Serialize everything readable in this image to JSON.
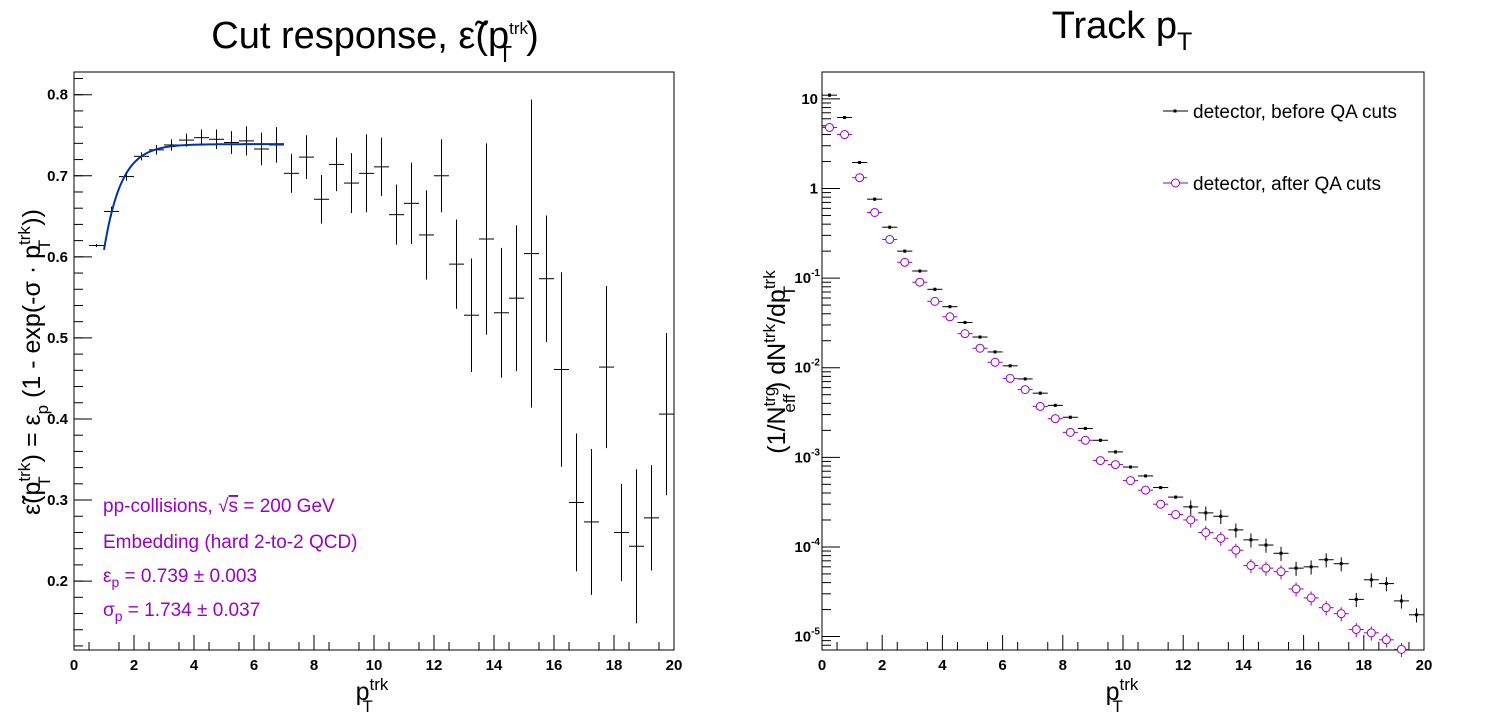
{
  "chart_data": [
    {
      "type": "scatter",
      "title": "Cut response, ",
      "title_var": "ε̃(p",
      "title_sup": "trk",
      "title_sub": "T",
      "title_close": ")",
      "xlabel": "p",
      "xlabel_sup": "trk",
      "xlabel_sub": "T",
      "ylabel": "ε̃(pᵀᵗʳᵏ) = εₚ (1 - exp(-σ · pᵀᵗʳᵏ))",
      "ylabel_parts": [
        "ε̃(p",
        "trk",
        "T",
        ") = ε",
        "p",
        " (1 - exp(-σ · p",
        "trk",
        "T",
        "))"
      ],
      "xlim": [
        0,
        20
      ],
      "ylim": [
        0.115,
        0.828
      ],
      "xticks": [
        "0",
        "2",
        "4",
        "6",
        "8",
        "10",
        "12",
        "14",
        "16",
        "18",
        "20"
      ],
      "yticks": [
        "0.2",
        "0.3",
        "0.4",
        "0.5",
        "0.6",
        "0.7",
        "0.8"
      ],
      "ytick_values": [
        0.2,
        0.3,
        0.4,
        0.5,
        0.6,
        0.7,
        0.8
      ],
      "grid": false,
      "series": [
        {
          "color": "#000000",
          "points": [
            {
              "x": 0.75,
              "xerr": 0.25,
              "y": 0.614,
              "yerr": 0.002
            },
            {
              "x": 1.25,
              "xerr": 0.25,
              "y": 0.656,
              "yerr": 0.006
            },
            {
              "x": 1.75,
              "xerr": 0.25,
              "y": 0.699,
              "yerr": 0.005
            },
            {
              "x": 2.25,
              "xerr": 0.25,
              "y": 0.724,
              "yerr": 0.005
            },
            {
              "x": 2.75,
              "xerr": 0.25,
              "y": 0.732,
              "yerr": 0.006
            },
            {
              "x": 3.25,
              "xerr": 0.25,
              "y": 0.738,
              "yerr": 0.007
            },
            {
              "x": 3.75,
              "xerr": 0.25,
              "y": 0.744,
              "yerr": 0.008
            },
            {
              "x": 4.25,
              "xerr": 0.25,
              "y": 0.747,
              "yerr": 0.01
            },
            {
              "x": 4.75,
              "xerr": 0.25,
              "y": 0.745,
              "yerr": 0.012
            },
            {
              "x": 5.25,
              "xerr": 0.25,
              "y": 0.741,
              "yerr": 0.014
            },
            {
              "x": 5.75,
              "xerr": 0.25,
              "y": 0.743,
              "yerr": 0.018
            },
            {
              "x": 6.25,
              "xerr": 0.25,
              "y": 0.733,
              "yerr": 0.02
            },
            {
              "x": 6.75,
              "xerr": 0.25,
              "y": 0.738,
              "yerr": 0.022
            },
            {
              "x": 7.25,
              "xerr": 0.25,
              "y": 0.703,
              "yerr": 0.024
            },
            {
              "x": 7.75,
              "xerr": 0.25,
              "y": 0.723,
              "yerr": 0.027
            },
            {
              "x": 8.25,
              "xerr": 0.25,
              "y": 0.671,
              "yerr": 0.03
            },
            {
              "x": 8.75,
              "xerr": 0.25,
              "y": 0.714,
              "yerr": 0.033
            },
            {
              "x": 9.25,
              "xerr": 0.25,
              "y": 0.691,
              "yerr": 0.037
            },
            {
              "x": 9.75,
              "xerr": 0.25,
              "y": 0.703,
              "yerr": 0.048
            },
            {
              "x": 10.25,
              "xerr": 0.25,
              "y": 0.711,
              "yerr": 0.036
            },
            {
              "x": 10.75,
              "xerr": 0.25,
              "y": 0.652,
              "yerr": 0.037
            },
            {
              "x": 11.25,
              "xerr": 0.25,
              "y": 0.666,
              "yerr": 0.05
            },
            {
              "x": 11.75,
              "xerr": 0.25,
              "y": 0.627,
              "yerr": 0.055
            },
            {
              "x": 12.25,
              "xerr": 0.25,
              "y": 0.7,
              "yerr": 0.045
            },
            {
              "x": 12.75,
              "xerr": 0.25,
              "y": 0.591,
              "yerr": 0.055
            },
            {
              "x": 13.25,
              "xerr": 0.25,
              "y": 0.528,
              "yerr": 0.07
            },
            {
              "x": 13.75,
              "xerr": 0.25,
              "y": 0.622,
              "yerr": 0.118
            },
            {
              "x": 14.25,
              "xerr": 0.25,
              "y": 0.531,
              "yerr": 0.08
            },
            {
              "x": 14.75,
              "xerr": 0.25,
              "y": 0.549,
              "yerr": 0.09
            },
            {
              "x": 15.25,
              "xerr": 0.25,
              "y": 0.604,
              "yerr": 0.19
            },
            {
              "x": 15.75,
              "xerr": 0.25,
              "y": 0.573,
              "yerr": 0.078
            },
            {
              "x": 16.25,
              "xerr": 0.25,
              "y": 0.461,
              "yerr": 0.12
            },
            {
              "x": 16.75,
              "xerr": 0.25,
              "y": 0.297,
              "yerr": 0.085
            },
            {
              "x": 17.25,
              "xerr": 0.25,
              "y": 0.273,
              "yerr": 0.09
            },
            {
              "x": 17.75,
              "xerr": 0.25,
              "y": 0.464,
              "yerr": 0.1
            },
            {
              "x": 18.25,
              "xerr": 0.25,
              "y": 0.26,
              "yerr": 0.06
            },
            {
              "x": 18.75,
              "xerr": 0.25,
              "y": 0.243,
              "yerr": 0.095
            },
            {
              "x": 19.25,
              "xerr": 0.25,
              "y": 0.278,
              "yerr": 0.065
            },
            {
              "x": 19.75,
              "xerr": 0.25,
              "y": 0.406,
              "yerr": 0.1
            }
          ]
        }
      ],
      "fit": {
        "color": "#0033aa",
        "eps": 0.739,
        "sigma": 1.734,
        "xrange": [
          1,
          7
        ]
      },
      "annotations": {
        "color": "#9b00c8",
        "line1_prefix": "pp-collisions, ",
        "line1_sqrt": "√",
        "line1_s": "s",
        "line1_suffix": " = 200 GeV",
        "line2": "Embedding (hard 2-to-2 QCD)",
        "line3_sym": "ε",
        "line3_sub": "p",
        "line3_rest": " = 0.739 ± 0.003",
        "line4_sym": "σ",
        "line4_sub": "p",
        "line4_rest": " = 1.734 ± 0.037"
      }
    },
    {
      "type": "scatter",
      "title": "Track p",
      "title_sub": "T",
      "xlabel": "p",
      "xlabel_sup": "trk",
      "xlabel_sub": "T",
      "ylabel": "(1/Nᵉᶠᶠᵗʳᵍ) dNᵗʳᵏ/dpᵀᵗʳᵏ",
      "ylabel_parts": [
        "(1/N",
        "trg",
        "eff",
        ") dN",
        "trk",
        "/dp",
        "trk",
        "T"
      ],
      "xlim": [
        0,
        20
      ],
      "ylim_log10": [
        -5.15,
        1.3
      ],
      "log_y": true,
      "xticks": [
        "0",
        "2",
        "4",
        "6",
        "8",
        "10",
        "12",
        "14",
        "16",
        "18",
        "20"
      ],
      "yticks": [
        {
          "base": "10",
          "exp": "-5",
          "value": -5
        },
        {
          "base": "10",
          "exp": "-4",
          "value": -4
        },
        {
          "base": "10",
          "exp": "-3",
          "value": -3
        },
        {
          "base": "10",
          "exp": "-2",
          "value": -2
        },
        {
          "base": "10",
          "exp": "-1",
          "value": -1
        },
        {
          "base": "1",
          "exp": "",
          "value": 0
        },
        {
          "base": "10",
          "exp": "",
          "value": 1
        }
      ],
      "legend_position": "top-right",
      "grid": false,
      "series": [
        {
          "name": "detector, before QA cuts",
          "color": "#000000",
          "marker": "square-small",
          "points": [
            {
              "x": 0.25,
              "y": 11.0
            },
            {
              "x": 0.75,
              "y": 6.2
            },
            {
              "x": 1.25,
              "y": 1.95
            },
            {
              "x": 1.75,
              "y": 0.76
            },
            {
              "x": 2.25,
              "y": 0.37
            },
            {
              "x": 2.75,
              "y": 0.2
            },
            {
              "x": 3.25,
              "y": 0.12
            },
            {
              "x": 3.75,
              "y": 0.075
            },
            {
              "x": 4.25,
              "y": 0.048
            },
            {
              "x": 4.75,
              "y": 0.032
            },
            {
              "x": 5.25,
              "y": 0.022
            },
            {
              "x": 5.75,
              "y": 0.015
            },
            {
              "x": 6.25,
              "y": 0.0105
            },
            {
              "x": 6.75,
              "y": 0.0075
            },
            {
              "x": 7.25,
              "y": 0.0052
            },
            {
              "x": 7.75,
              "y": 0.0038
            },
            {
              "x": 8.25,
              "y": 0.0028
            },
            {
              "x": 8.75,
              "y": 0.0021
            },
            {
              "x": 9.25,
              "y": 0.00155
            },
            {
              "x": 9.75,
              "y": 0.00115
            },
            {
              "x": 10.25,
              "y": 0.00078
            },
            {
              "x": 10.75,
              "y": 0.00062
            },
            {
              "x": 11.25,
              "y": 0.00046
            },
            {
              "x": 11.75,
              "y": 0.00036
            },
            {
              "x": 12.25,
              "y": 0.00028
            },
            {
              "x": 12.75,
              "y": 0.00024
            },
            {
              "x": 13.25,
              "y": 0.00022
            },
            {
              "x": 13.75,
              "y": 0.000155
            },
            {
              "x": 14.25,
              "y": 0.00012
            },
            {
              "x": 14.75,
              "y": 0.000105
            },
            {
              "x": 15.25,
              "y": 8.5e-05
            },
            {
              "x": 15.75,
              "y": 5.8e-05
            },
            {
              "x": 16.25,
              "y": 6e-05
            },
            {
              "x": 16.75,
              "y": 7.2e-05
            },
            {
              "x": 17.25,
              "y": 6.5e-05
            },
            {
              "x": 17.75,
              "y": 2.6e-05
            },
            {
              "x": 18.25,
              "y": 4.3e-05
            },
            {
              "x": 18.75,
              "y": 3.9e-05
            },
            {
              "x": 19.25,
              "y": 2.5e-05
            },
            {
              "x": 19.75,
              "y": 1.75e-05
            }
          ]
        },
        {
          "name": "detector, after QA cuts",
          "color": "#9b00c8",
          "marker": "circle-open",
          "points": [
            {
              "x": 0.25,
              "y": 4.8
            },
            {
              "x": 0.75,
              "y": 4.0
            },
            {
              "x": 1.25,
              "y": 1.32
            },
            {
              "x": 1.75,
              "y": 0.54
            },
            {
              "x": 2.25,
              "y": 0.27
            },
            {
              "x": 2.75,
              "y": 0.15
            },
            {
              "x": 3.25,
              "y": 0.09
            },
            {
              "x": 3.75,
              "y": 0.055
            },
            {
              "x": 4.25,
              "y": 0.037
            },
            {
              "x": 4.75,
              "y": 0.024
            },
            {
              "x": 5.25,
              "y": 0.0165
            },
            {
              "x": 5.75,
              "y": 0.0115
            },
            {
              "x": 6.25,
              "y": 0.0076
            },
            {
              "x": 6.75,
              "y": 0.0057
            },
            {
              "x": 7.25,
              "y": 0.0037
            },
            {
              "x": 7.75,
              "y": 0.0027
            },
            {
              "x": 8.25,
              "y": 0.0019
            },
            {
              "x": 8.75,
              "y": 0.00155
            },
            {
              "x": 9.25,
              "y": 0.00092
            },
            {
              "x": 9.75,
              "y": 0.00083
            },
            {
              "x": 10.25,
              "y": 0.00055
            },
            {
              "x": 10.75,
              "y": 0.00043
            },
            {
              "x": 11.25,
              "y": 0.0003
            },
            {
              "x": 11.75,
              "y": 0.00023
            },
            {
              "x": 12.25,
              "y": 0.0002
            },
            {
              "x": 12.75,
              "y": 0.000145
            },
            {
              "x": 13.25,
              "y": 0.000125
            },
            {
              "x": 13.75,
              "y": 9.2e-05
            },
            {
              "x": 14.25,
              "y": 6.2e-05
            },
            {
              "x": 14.75,
              "y": 5.8e-05
            },
            {
              "x": 15.25,
              "y": 5.3e-05
            },
            {
              "x": 15.75,
              "y": 3.4e-05
            },
            {
              "x": 16.25,
              "y": 2.7e-05
            },
            {
              "x": 16.75,
              "y": 2.1e-05
            },
            {
              "x": 17.25,
              "y": 1.8e-05
            },
            {
              "x": 17.75,
              "y": 1.2e-05
            },
            {
              "x": 18.25,
              "y": 1.1e-05
            },
            {
              "x": 18.75,
              "y": 9.2e-06
            },
            {
              "x": 19.25,
              "y": 7.2e-06
            },
            {
              "x": 19.75,
              "y": 6.8e-06
            }
          ]
        }
      ]
    }
  ]
}
